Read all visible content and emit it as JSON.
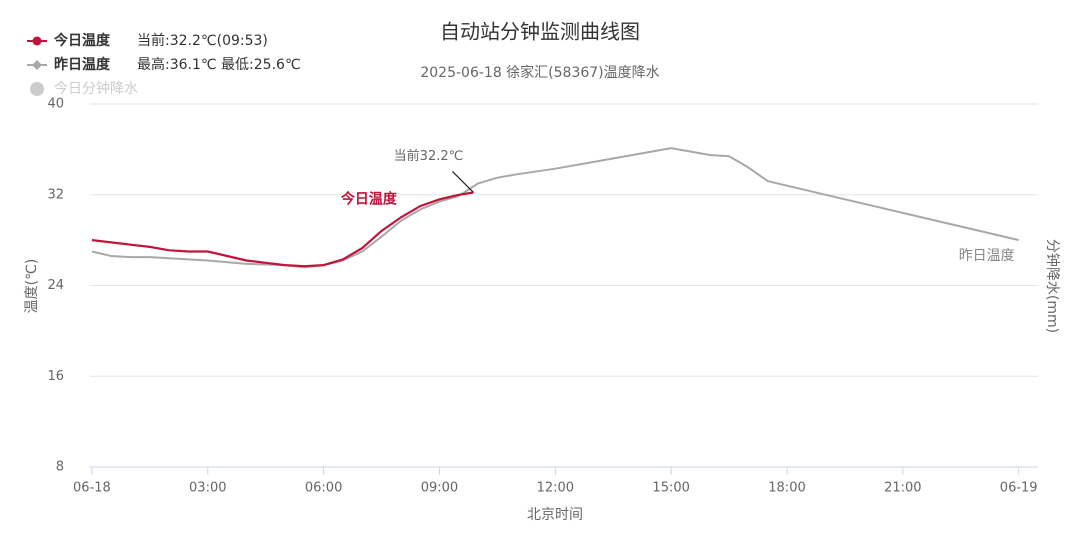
{
  "chart_data": {
    "type": "line",
    "title": "自动站分钟监测曲线图",
    "subtitle": "2025-06-18 徐家汇(58367)温度降水",
    "x_label": "北京时间",
    "y_label": "温度(℃)",
    "y2_label": "分钟降水(mm)",
    "xlim": [
      -0.05,
      24.5
    ],
    "xticks": [
      {
        "value": 0,
        "label": "06-18"
      },
      {
        "value": 3,
        "label": "03:00"
      },
      {
        "value": 6,
        "label": "06:00"
      },
      {
        "value": 9,
        "label": "09:00"
      },
      {
        "value": 12,
        "label": "12:00"
      },
      {
        "value": 15,
        "label": "15:00"
      },
      {
        "value": 18,
        "label": "18:00"
      },
      {
        "value": 21,
        "label": "21:00"
      },
      {
        "value": 24,
        "label": "06-19"
      }
    ],
    "ylim": [
      8,
      40
    ],
    "yticks": [
      8,
      16,
      24,
      32,
      40
    ],
    "grid": true,
    "series": [
      {
        "name": "今日温度",
        "note": "当前:32.2℃(09:53)",
        "color": "#c0143c",
        "marker": "circle",
        "x": [
          0,
          0.5,
          1,
          1.5,
          2,
          2.5,
          3,
          3.5,
          4,
          4.5,
          5,
          5.5,
          6,
          6.5,
          7,
          7.5,
          8,
          8.5,
          9,
          9.5,
          9.88
        ],
        "values": [
          28.0,
          27.8,
          27.6,
          27.4,
          27.1,
          27.0,
          27.0,
          26.6,
          26.2,
          26.0,
          25.8,
          25.7,
          25.8,
          26.3,
          27.3,
          28.8,
          30.0,
          31.0,
          31.6,
          32.0,
          32.2
        ]
      },
      {
        "name": "昨日温度",
        "note": "最高:36.1℃ 最低:25.6℃",
        "color": "#a8a8a8",
        "marker": "diamond",
        "x": [
          0,
          0.5,
          1,
          1.5,
          2,
          3,
          4,
          5,
          5.5,
          6,
          6.5,
          7,
          7.5,
          8,
          8.5,
          9,
          9.5,
          10,
          10.5,
          11,
          12,
          13,
          14,
          15,
          16,
          16.5,
          17,
          17.5,
          18,
          19,
          20,
          21,
          22,
          23,
          24
        ],
        "values": [
          27.0,
          26.6,
          26.5,
          26.5,
          26.4,
          26.2,
          25.9,
          25.8,
          25.6,
          25.8,
          26.2,
          27.0,
          28.3,
          29.7,
          30.7,
          31.4,
          31.9,
          33.0,
          33.5,
          33.8,
          34.3,
          34.9,
          35.5,
          36.1,
          35.5,
          35.4,
          34.4,
          33.2,
          32.8,
          32.0,
          31.2,
          30.4,
          29.6,
          28.8,
          28.0
        ]
      },
      {
        "name": "今日分钟降水",
        "color": "#cccccc",
        "marker": "circle",
        "axis": "y2",
        "hidden": true,
        "x": [],
        "values": []
      }
    ],
    "current_label": {
      "text": "当前32.2℃",
      "x": 9.88,
      "y": 32.2
    }
  }
}
